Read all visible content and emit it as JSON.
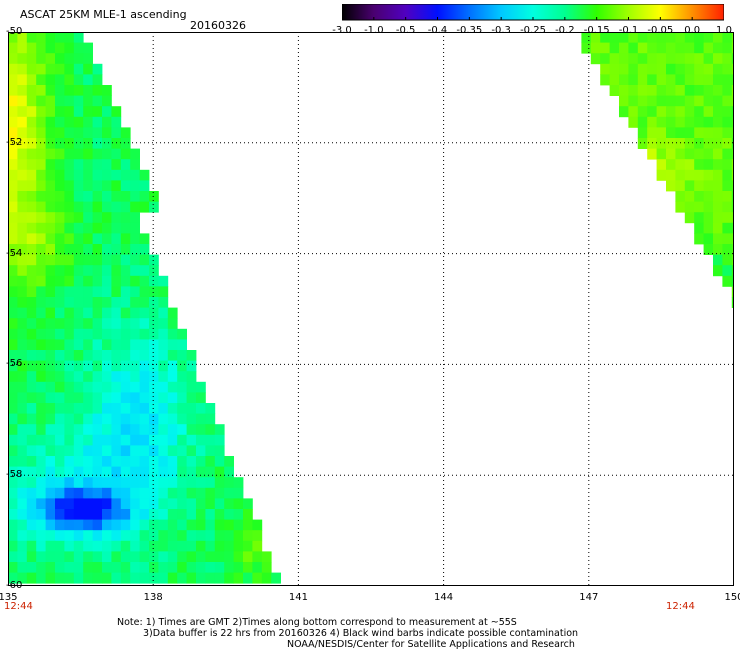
{
  "header": {
    "title": "ASCAT 25KM MLE-1 ascending",
    "date": "20160326"
  },
  "colorbar": {
    "ticks": [
      "-3.0",
      "-1.0",
      "-0.5",
      "-0.4",
      "-0.35",
      "-0.3",
      "-0.25",
      "-0.2",
      "-0.15",
      "-0.1",
      "-0.05",
      "0.0",
      "1.0"
    ],
    "colors": [
      "#000000",
      "#4a0070",
      "#5000c0",
      "#0010ff",
      "#0070ff",
      "#00c8ff",
      "#00ffe0",
      "#00ff90",
      "#30ff00",
      "#a0ff00",
      "#ffff00",
      "#ff9000",
      "#ff2000"
    ]
  },
  "axes": {
    "lat_labels": [
      "-50",
      "-52",
      "-54",
      "-56",
      "-58",
      "-60"
    ],
    "lon_labels": [
      "135",
      "138",
      "141",
      "144",
      "147",
      "150"
    ],
    "lat_range": [
      -60,
      -50
    ],
    "lon_range": [
      135,
      150
    ]
  },
  "times": {
    "left": "12:44",
    "right": "12:44"
  },
  "notes": {
    "line1": "Note: 1) Times are GMT 2)Times along bottom correspond to measurement at ~55S",
    "line2": "3)Data buffer is 22 hrs from 20160326 4) Black wind barbs indicate possible contamination",
    "line3": "NOAA/NESDIS/Center for Satellite Applications and Research"
  }
}
